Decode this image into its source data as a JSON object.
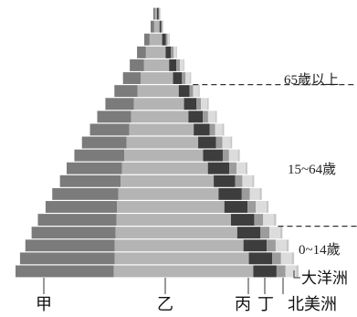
{
  "chart_data": {
    "type": "bar",
    "orientation": "horizontal-stacked-population-pyramid",
    "categories": [
      "甲",
      "乙",
      "丙",
      "丁",
      "北美洲",
      "大洋洲"
    ],
    "colors": {
      "甲": "#7b7b7b",
      "乙": "#b4b4b4",
      "丙": "#3d3d3d",
      "丁": "#9c9c9c",
      "北美洲": "#dcdcdc",
      "大洋洲": "#c8c8c8"
    },
    "cohorts": [
      {
        "甲": 1,
        "乙": 1,
        "丙": 1,
        "丁": 0.5,
        "北美洲": 0.5,
        "大洋洲": 0.2
      },
      {
        "甲": 2,
        "乙": 3,
        "丙": 1,
        "丁": 0.5,
        "北美洲": 0.5,
        "大洋洲": 0.2
      },
      {
        "甲": 3,
        "乙": 7,
        "丙": 2,
        "丁": 1,
        "北美洲": 1,
        "大洋洲": 0.3
      },
      {
        "甲": 5,
        "乙": 11,
        "丙": 3,
        "丁": 1.5,
        "北美洲": 1.5,
        "大洋洲": 0.4
      },
      {
        "甲": 8,
        "乙": 14,
        "丙": 4,
        "丁": 2,
        "北美洲": 2,
        "大洋洲": 0.5
      },
      {
        "甲": 10,
        "乙": 18,
        "丙": 5,
        "丁": 2,
        "北美洲": 2.5,
        "大洋洲": 0.6
      },
      {
        "甲": 13,
        "乙": 23,
        "丙": 6,
        "丁": 2,
        "北美洲": 3,
        "大洋洲": 0.7
      },
      {
        "甲": 16,
        "乙": 28,
        "丙": 7,
        "丁": 2.5,
        "北美洲": 3.5,
        "大洋洲": 0.8
      },
      {
        "甲": 19,
        "乙": 32,
        "丙": 8,
        "丁": 3,
        "北美洲": 4,
        "大洋洲": 0.9
      },
      {
        "甲": 22,
        "乙": 36,
        "丙": 9,
        "丁": 3,
        "北美洲": 4,
        "大洋洲": 1
      },
      {
        "甲": 25,
        "乙": 40,
        "丙": 10,
        "丁": 3.5,
        "北美洲": 4.5,
        "大洋洲": 1
      },
      {
        "甲": 28,
        "乙": 44,
        "丙": 11,
        "丁": 3.5,
        "北美洲": 5,
        "大洋洲": 1
      },
      {
        "甲": 31,
        "乙": 48,
        "丙": 12,
        "丁": 4,
        "北美洲": 5,
        "大洋洲": 1.1
      },
      {
        "甲": 34,
        "乙": 52,
        "丙": 12,
        "丁": 4,
        "北美洲": 5.5,
        "大洋洲": 1.1
      },
      {
        "甲": 37,
        "乙": 56,
        "丙": 13,
        "丁": 4.5,
        "北美洲": 5.5,
        "大洋洲": 1.2
      },
      {
        "甲": 40,
        "乙": 60,
        "丙": 13,
        "丁": 4.5,
        "北美洲": 6,
        "大洋洲": 1.2
      },
      {
        "甲": 44,
        "乙": 64,
        "丙": 13,
        "丁": 5,
        "北美洲": 6,
        "大洋洲": 1.3
      },
      {
        "甲": 47,
        "乙": 68,
        "丙": 13,
        "丁": 5,
        "北美洲": 6,
        "大洋洲": 1.3
      },
      {
        "甲": 50,
        "乙": 72,
        "丙": 13,
        "丁": 5,
        "北美洲": 6,
        "大洋洲": 1.3
      },
      {
        "甲": 53,
        "乙": 75,
        "丙": 13,
        "丁": 5,
        "北美洲": 6,
        "大洋洲": 1.3
      },
      {
        "甲": 55,
        "乙": 78,
        "丙": 13,
        "丁": 5,
        "北美洲": 6,
        "大洋洲": 1.3
      }
    ],
    "age_groups": [
      {
        "label": "65歲以上"
      },
      {
        "label": "15~64歲"
      },
      {
        "label": "0~14歲"
      }
    ],
    "title": "",
    "xlabel": "",
    "ylabel": "",
    "grid": false,
    "legend": "bottom"
  }
}
